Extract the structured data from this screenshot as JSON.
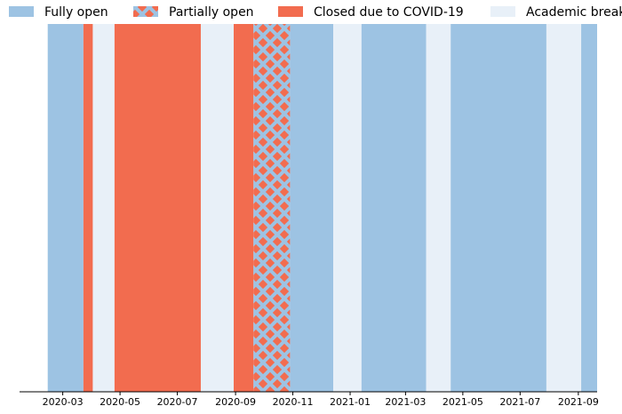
{
  "chart_data": {
    "type": "timeline",
    "xlim": [
      "2020-01-15",
      "2021-09-21"
    ],
    "xticks": [
      {
        "value": "2020-03-01",
        "label": "2020-03"
      },
      {
        "value": "2020-05-01",
        "label": "2020-05"
      },
      {
        "value": "2020-07-01",
        "label": "2020-07"
      },
      {
        "value": "2020-09-01",
        "label": "2020-09"
      },
      {
        "value": "2020-11-01",
        "label": "2020-11"
      },
      {
        "value": "2021-01-01",
        "label": "2021-01"
      },
      {
        "value": "2021-03-01",
        "label": "2021-03"
      },
      {
        "value": "2021-05-01",
        "label": "2021-05"
      },
      {
        "value": "2021-07-01",
        "label": "2021-07"
      },
      {
        "value": "2021-09-01",
        "label": "2021-09"
      }
    ],
    "legend": "top",
    "series": [
      {
        "name": "Fully open",
        "color": "#9dc3e3",
        "spans": [
          [
            "2020-02-14",
            "2020-03-23"
          ],
          [
            "2020-10-29",
            "2020-12-14"
          ],
          [
            "2021-01-13",
            "2021-03-23"
          ],
          [
            "2021-04-18",
            "2021-07-29"
          ],
          [
            "2021-09-04",
            "2021-09-21"
          ]
        ]
      },
      {
        "name": "Partially open",
        "color": "#f26c4f",
        "hatch": "x",
        "hatch_color": "#9dc3e3",
        "spans": [
          [
            "2020-09-20",
            "2020-10-29"
          ]
        ]
      },
      {
        "name": "Closed due to COVID-19",
        "color": "#f26c4f",
        "spans": [
          [
            "2020-03-23",
            "2020-04-02"
          ],
          [
            "2020-04-25",
            "2020-07-26"
          ],
          [
            "2020-08-30",
            "2020-09-20"
          ]
        ]
      },
      {
        "name": "Academic break",
        "color": "#e8f0f8",
        "spans": [
          [
            "2020-04-02",
            "2020-04-25"
          ],
          [
            "2020-07-26",
            "2020-08-30"
          ],
          [
            "2020-12-14",
            "2021-01-13"
          ],
          [
            "2021-03-23",
            "2021-04-18"
          ],
          [
            "2021-07-29",
            "2021-09-04"
          ]
        ]
      }
    ]
  }
}
